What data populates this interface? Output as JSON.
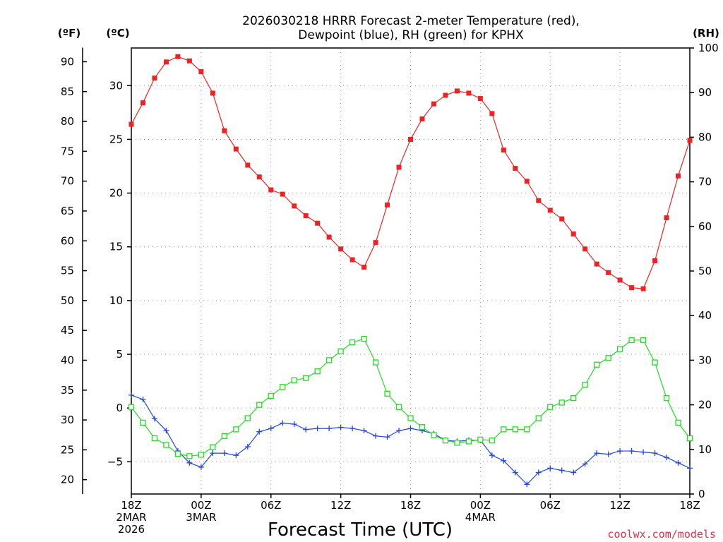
{
  "chart_data": {
    "type": "line",
    "title_lines": [
      "2026030218 HRRR Forecast 2-meter Temperature (red),",
      "Dewpoint (blue), RH (green) for KPHX"
    ],
    "xlabel": "Forecast Time (UTC)",
    "credit": "coolwx.com/models",
    "units": {
      "f": "(ºF)",
      "c": "(ºC)",
      "rh": "(RH)"
    },
    "x_range": [
      0,
      48
    ],
    "celsius_range": [
      -8,
      33.5
    ],
    "rh_range": [
      0,
      100
    ],
    "grid": true,
    "x_ticks": [
      {
        "x": 0,
        "lines": [
          "18Z",
          "2MAR",
          "2026"
        ]
      },
      {
        "x": 6,
        "lines": [
          "00Z",
          "3MAR"
        ]
      },
      {
        "x": 12,
        "lines": [
          "06Z"
        ]
      },
      {
        "x": 18,
        "lines": [
          "12Z"
        ]
      },
      {
        "x": 24,
        "lines": [
          "18Z"
        ]
      },
      {
        "x": 30,
        "lines": [
          "00Z",
          "4MAR"
        ]
      },
      {
        "x": 36,
        "lines": [
          "06Z"
        ]
      },
      {
        "x": 42,
        "lines": [
          "12Z"
        ]
      },
      {
        "x": 48,
        "lines": [
          "18Z"
        ]
      }
    ],
    "celsius_ticks": [
      -5,
      0,
      5,
      10,
      15,
      20,
      25,
      30
    ],
    "fahrenheit_ticks": [
      20,
      25,
      30,
      35,
      40,
      45,
      50,
      55,
      60,
      65,
      70,
      75,
      80,
      85,
      90
    ],
    "rh_ticks": [
      0,
      10,
      20,
      30,
      40,
      50,
      60,
      70,
      80,
      90,
      100
    ],
    "series": [
      {
        "name": "2-meter Temperature",
        "units": "C",
        "color": "#ee2222",
        "marker": "filled-square",
        "values": [
          26.4,
          28.4,
          30.7,
          32.2,
          32.7,
          32.3,
          31.3,
          29.3,
          25.8,
          24.1,
          22.6,
          21.5,
          20.3,
          19.9,
          18.8,
          17.9,
          17.2,
          15.9,
          14.8,
          13.8,
          13.1,
          15.4,
          18.9,
          22.4,
          25.0,
          26.9,
          28.3,
          29.1,
          29.5,
          29.3,
          28.8,
          27.4,
          24.0,
          22.3,
          21.1,
          19.3,
          18.4,
          17.6,
          16.2,
          14.8,
          13.4,
          12.6,
          11.9,
          11.2,
          11.1,
          13.7,
          17.7,
          21.6,
          24.9
        ]
      },
      {
        "name": "Dewpoint",
        "units": "C",
        "color": "#2244ee",
        "marker": "plus",
        "values": [
          1.2,
          0.8,
          -1.0,
          -2.1,
          -4.0,
          -5.1,
          -5.5,
          -4.2,
          -4.2,
          -4.4,
          -3.6,
          -2.2,
          -1.9,
          -1.4,
          -1.5,
          -2.0,
          -1.9,
          -1.9,
          -1.8,
          -1.9,
          -2.1,
          -2.6,
          -2.7,
          -2.1,
          -1.9,
          -2.1,
          -2.4,
          -3.0,
          -3.1,
          -3.0,
          -3.0,
          -4.4,
          -4.9,
          -6.0,
          -7.1,
          -6.0,
          -5.6,
          -5.8,
          -6.0,
          -5.2,
          -4.2,
          -4.3,
          -4.0,
          -4.0,
          -4.1,
          -4.2,
          -4.6,
          -5.1,
          -5.6
        ]
      },
      {
        "name": "RH",
        "units": "%",
        "color": "#22dd22",
        "marker": "open-square",
        "values": [
          19.5,
          16,
          12.5,
          11,
          9,
          8.5,
          8.8,
          10.5,
          13,
          14.5,
          17,
          20,
          22,
          24,
          25.5,
          26,
          27.5,
          30,
          32,
          34,
          34.8,
          29.5,
          22.5,
          19.5,
          17,
          15,
          13.2,
          12,
          11.5,
          11.8,
          12.2,
          12.0,
          14.5,
          14.5,
          14.5,
          17,
          19.5,
          20.5,
          21.5,
          24.5,
          29,
          30.5,
          32.5,
          34.5,
          34.5,
          29.5,
          21.5,
          16,
          12.5
        ]
      }
    ]
  }
}
